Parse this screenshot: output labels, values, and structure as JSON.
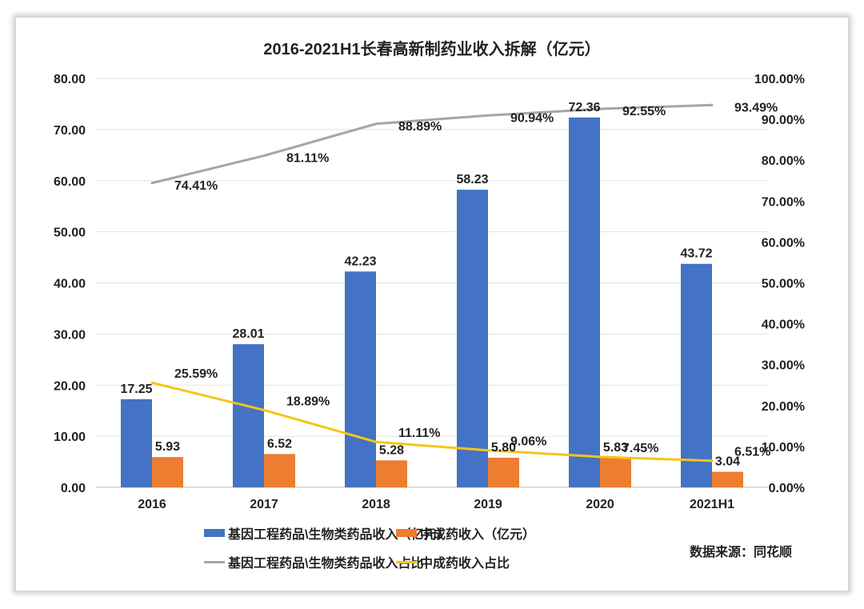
{
  "chart_data": {
    "type": "bar",
    "title": "2016-2021H1长春高新制药业收入拆解（亿元）",
    "categories": [
      "2016",
      "2017",
      "2018",
      "2019",
      "2020",
      "2021H1"
    ],
    "y_left": {
      "range": [
        0,
        80
      ],
      "ticks": [
        "0.00",
        "10.00",
        "20.00",
        "30.00",
        "40.00",
        "50.00",
        "60.00",
        "70.00",
        "80.00"
      ]
    },
    "y_right": {
      "range": [
        0,
        100
      ],
      "ticks": [
        "0.00%",
        "10.00%",
        "20.00%",
        "30.00%",
        "40.00%",
        "50.00%",
        "60.00%",
        "70.00%",
        "80.00%",
        "90.00%",
        "100.00%"
      ]
    },
    "grid": true,
    "legend_position": "bottom",
    "series": [
      {
        "name": "基因工程药品\\生物类药品收入（亿元）",
        "type": "bar",
        "axis": "left",
        "color": "#4472C4",
        "values": [
          17.25,
          28.01,
          42.23,
          58.23,
          72.36,
          43.72
        ],
        "labels": [
          "17.25",
          "28.01",
          "42.23",
          "58.23",
          "72.36",
          "43.72"
        ]
      },
      {
        "name": "中成药收入（亿元）",
        "type": "bar",
        "axis": "left",
        "color": "#ED7D31",
        "values": [
          5.93,
          6.52,
          5.28,
          5.8,
          5.83,
          3.04
        ],
        "labels": [
          "5.93",
          "6.52",
          "5.28",
          "5.80",
          "5.83",
          "3.04"
        ]
      },
      {
        "name": "基因工程药品\\生物类药品收入占比",
        "type": "line",
        "axis": "right",
        "color": "#A5A5A5",
        "values": [
          74.41,
          81.11,
          88.89,
          90.94,
          92.55,
          93.49
        ],
        "labels": [
          "74.41%",
          "81.11%",
          "88.89%",
          "90.94%",
          "92.55%",
          "93.49%"
        ]
      },
      {
        "name": "中成药收入占比",
        "type": "line",
        "axis": "right",
        "color": "#F5C518",
        "values": [
          25.59,
          18.89,
          11.11,
          9.06,
          7.45,
          6.51
        ],
        "labels": [
          "25.59%",
          "18.89%",
          "11.11%",
          "9.06%",
          "7.45%",
          "6.51%"
        ]
      }
    ],
    "source_note": "数据来源：同花顺"
  }
}
